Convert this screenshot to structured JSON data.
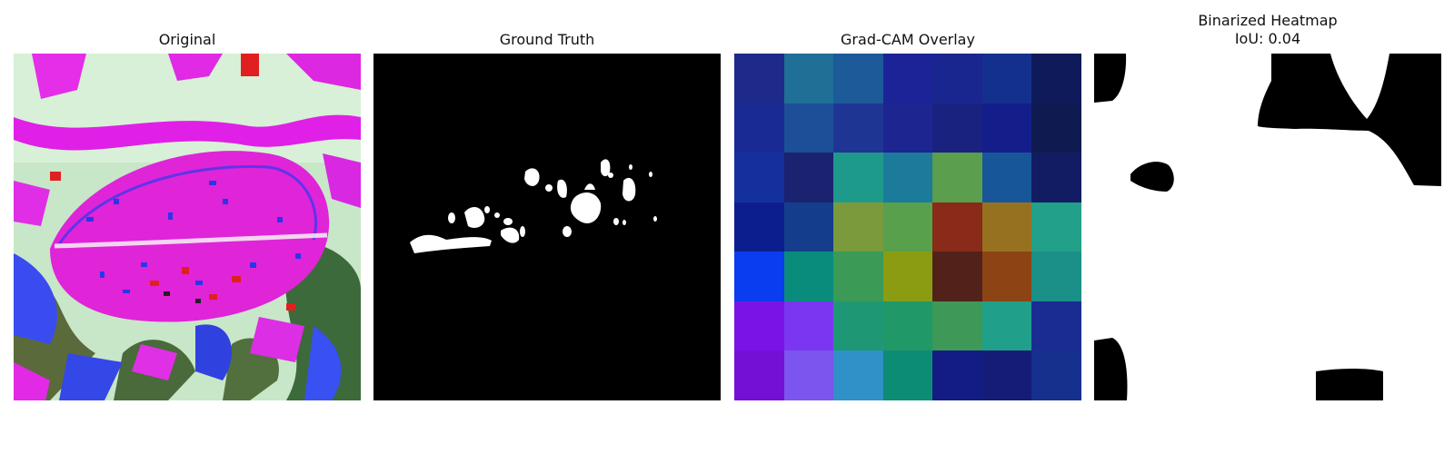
{
  "figure": {
    "panels": [
      {
        "title": "Original"
      },
      {
        "title": "Ground Truth"
      },
      {
        "title": "Grad-CAM Overlay"
      },
      {
        "title": "Binarized Heatmap",
        "subtitle": "IoU: 0.04"
      }
    ],
    "iou_value": 0.04,
    "gradcam_grid_colors": [
      [
        "#1e2a8a",
        "#1f6f96",
        "#1c5a9a",
        "#1c2396",
        "#1a2690",
        "#14308f",
        "#0e1a5a"
      ],
      [
        "#1a2a94",
        "#1d4f98",
        "#1f3594",
        "#1c2590",
        "#1a2280",
        "#141e8a",
        "#0e1a50"
      ],
      [
        "#14309a",
        "#1b2270",
        "#1e9a8a",
        "#1c7a9a",
        "#5a9e4e",
        "#18569a",
        "#121c62"
      ],
      [
        "#0c1e8e",
        "#143e8c",
        "#7a9a3c",
        "#58a04c",
        "#8a2a18",
        "#967220",
        "#22a08a"
      ],
      [
        "#0a3cf0",
        "#0a8c7c",
        "#3a9a56",
        "#8c9c12",
        "#52221a",
        "#8c4414",
        "#1a9088"
      ],
      [
        "#7a14e6",
        "#7a36f0",
        "#1e9874",
        "#209868",
        "#3e9858",
        "#20a08a",
        "#1a2c92"
      ],
      [
        "#7410d6",
        "#7c54ee",
        "#3090c8",
        "#0c8c74",
        "#121c84",
        "#141c78",
        "#16308e"
      ]
    ]
  }
}
